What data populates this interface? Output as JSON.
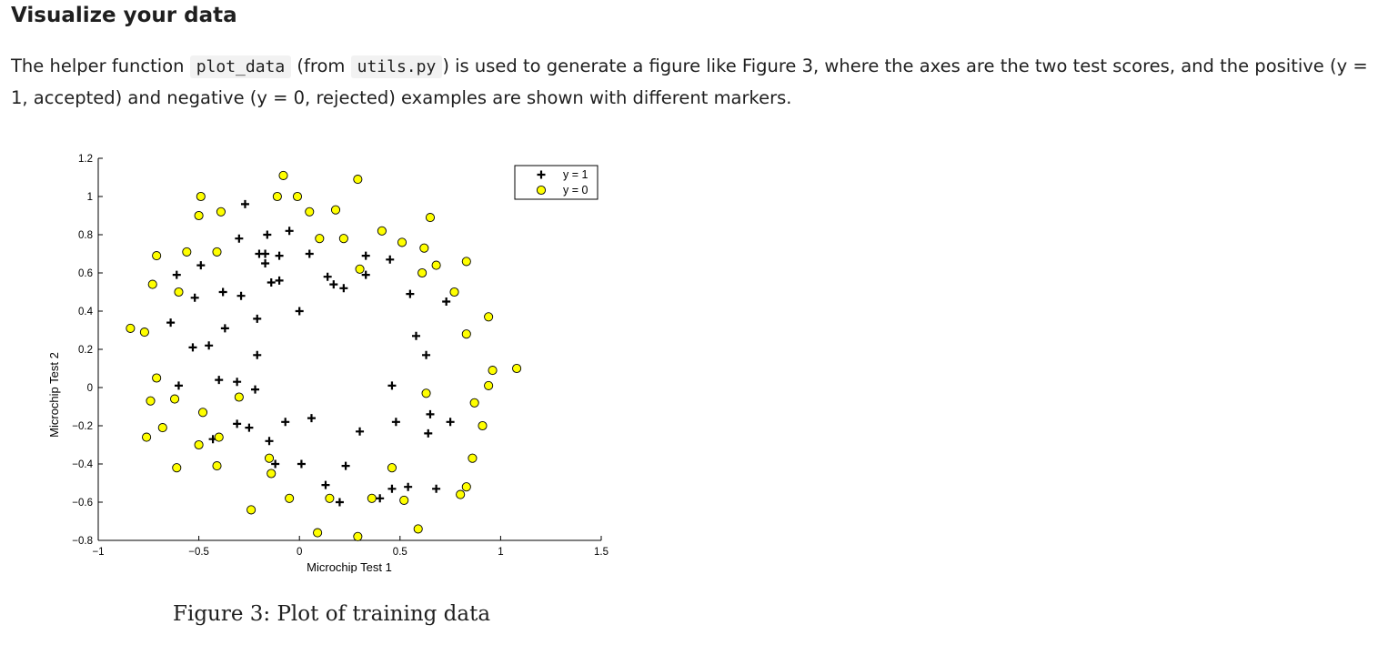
{
  "section": {
    "heading": "Visualize your data",
    "paragraph": {
      "t1": "The helper function ",
      "code1": "plot_data",
      "t2": " (from ",
      "code2": "utils.py",
      "t3": ") is used to generate a figure like Figure 3, where the axes are the two test scores, and the positive (y = 1, accepted) and negative (y = 0, rejected) examples are shown with different markers."
    },
    "caption": "Figure 3: Plot of training data"
  },
  "colors": {
    "negative_fill": "#ffff00",
    "marker_stroke": "#000000"
  },
  "chart_data": {
    "type": "scatter",
    "xlabel": "Microchip Test 1",
    "ylabel": "Microchip Test 2",
    "xlim": [
      -1,
      1.5
    ],
    "ylim": [
      -0.8,
      1.2
    ],
    "xticks": [
      "−1",
      "−0.5",
      "0",
      "0.5",
      "1",
      "1.5"
    ],
    "yticks": [
      "−0.8",
      "−0.6",
      "−0.4",
      "−0.2",
      "0",
      "0.2",
      "0.4",
      "0.6",
      "0.8",
      "1",
      "1.2"
    ],
    "legend_position": "top-right",
    "series": [
      {
        "name": "y = 1",
        "marker": "plus",
        "points": [
          [
            -0.27,
            0.96
          ],
          [
            -0.3,
            0.78
          ],
          [
            -0.16,
            0.8
          ],
          [
            -0.05,
            0.82
          ],
          [
            -0.2,
            0.7
          ],
          [
            -0.17,
            0.7
          ],
          [
            -0.1,
            0.69
          ],
          [
            0.05,
            0.7
          ],
          [
            -0.17,
            0.65
          ],
          [
            -0.49,
            0.64
          ],
          [
            -0.61,
            0.59
          ],
          [
            -0.38,
            0.5
          ],
          [
            -0.29,
            0.48
          ],
          [
            -0.52,
            0.47
          ],
          [
            -0.14,
            0.55
          ],
          [
            -0.1,
            0.56
          ],
          [
            0.14,
            0.58
          ],
          [
            0.17,
            0.54
          ],
          [
            0.22,
            0.52
          ],
          [
            0.33,
            0.69
          ],
          [
            0.33,
            0.59
          ],
          [
            0.45,
            0.67
          ],
          [
            0.55,
            0.49
          ],
          [
            0.73,
            0.45
          ],
          [
            -0.64,
            0.34
          ],
          [
            -0.37,
            0.31
          ],
          [
            -0.21,
            0.36
          ],
          [
            0.0,
            0.4
          ],
          [
            -0.53,
            0.21
          ],
          [
            -0.45,
            0.22
          ],
          [
            -0.21,
            0.17
          ],
          [
            0.58,
            0.27
          ],
          [
            0.63,
            0.17
          ],
          [
            -0.6,
            0.01
          ],
          [
            -0.4,
            0.04
          ],
          [
            -0.31,
            0.03
          ],
          [
            -0.22,
            -0.01
          ],
          [
            0.46,
            0.01
          ],
          [
            -0.31,
            -0.19
          ],
          [
            -0.25,
            -0.21
          ],
          [
            -0.07,
            -0.18
          ],
          [
            0.06,
            -0.16
          ],
          [
            0.3,
            -0.23
          ],
          [
            0.48,
            -0.18
          ],
          [
            0.65,
            -0.14
          ],
          [
            0.75,
            -0.18
          ],
          [
            0.64,
            -0.24
          ],
          [
            -0.43,
            -0.27
          ],
          [
            -0.15,
            -0.28
          ],
          [
            -0.12,
            -0.4
          ],
          [
            0.01,
            -0.4
          ],
          [
            0.23,
            -0.41
          ],
          [
            0.13,
            -0.51
          ],
          [
            0.2,
            -0.6
          ],
          [
            0.4,
            -0.58
          ],
          [
            0.46,
            -0.53
          ],
          [
            0.54,
            -0.52
          ],
          [
            0.68,
            -0.53
          ]
        ]
      },
      {
        "name": "y = 0",
        "marker": "circle",
        "points": [
          [
            -0.08,
            1.11
          ],
          [
            0.29,
            1.09
          ],
          [
            -0.49,
            1.0
          ],
          [
            -0.11,
            1.0
          ],
          [
            -0.01,
            1.0
          ],
          [
            -0.5,
            0.9
          ],
          [
            -0.39,
            0.92
          ],
          [
            0.05,
            0.92
          ],
          [
            0.18,
            0.93
          ],
          [
            0.65,
            0.89
          ],
          [
            0.41,
            0.82
          ],
          [
            0.1,
            0.78
          ],
          [
            0.22,
            0.78
          ],
          [
            0.51,
            0.76
          ],
          [
            0.62,
            0.73
          ],
          [
            -0.71,
            0.69
          ],
          [
            -0.56,
            0.71
          ],
          [
            -0.41,
            0.71
          ],
          [
            0.3,
            0.62
          ],
          [
            0.61,
            0.6
          ],
          [
            0.68,
            0.64
          ],
          [
            0.83,
            0.66
          ],
          [
            -0.73,
            0.54
          ],
          [
            -0.6,
            0.5
          ],
          [
            0.77,
            0.5
          ],
          [
            -0.84,
            0.31
          ],
          [
            -0.77,
            0.29
          ],
          [
            0.94,
            0.37
          ],
          [
            0.83,
            0.28
          ],
          [
            0.96,
            0.09
          ],
          [
            1.08,
            0.1
          ],
          [
            0.94,
            0.01
          ],
          [
            -0.71,
            0.05
          ],
          [
            0.63,
            -0.03
          ],
          [
            -0.74,
            -0.07
          ],
          [
            -0.62,
            -0.06
          ],
          [
            -0.3,
            -0.05
          ],
          [
            0.87,
            -0.08
          ],
          [
            -0.48,
            -0.13
          ],
          [
            -0.68,
            -0.21
          ],
          [
            0.91,
            -0.2
          ],
          [
            -0.76,
            -0.26
          ],
          [
            -0.5,
            -0.3
          ],
          [
            -0.4,
            -0.26
          ],
          [
            0.86,
            -0.37
          ],
          [
            -0.61,
            -0.42
          ],
          [
            -0.41,
            -0.41
          ],
          [
            -0.15,
            -0.37
          ],
          [
            -0.14,
            -0.45
          ],
          [
            0.46,
            -0.42
          ],
          [
            -0.24,
            -0.64
          ],
          [
            -0.05,
            -0.58
          ],
          [
            0.15,
            -0.58
          ],
          [
            0.36,
            -0.58
          ],
          [
            0.52,
            -0.59
          ],
          [
            0.8,
            -0.56
          ],
          [
            0.83,
            -0.52
          ],
          [
            0.09,
            -0.76
          ],
          [
            0.29,
            -0.78
          ],
          [
            0.59,
            -0.74
          ]
        ]
      }
    ]
  }
}
